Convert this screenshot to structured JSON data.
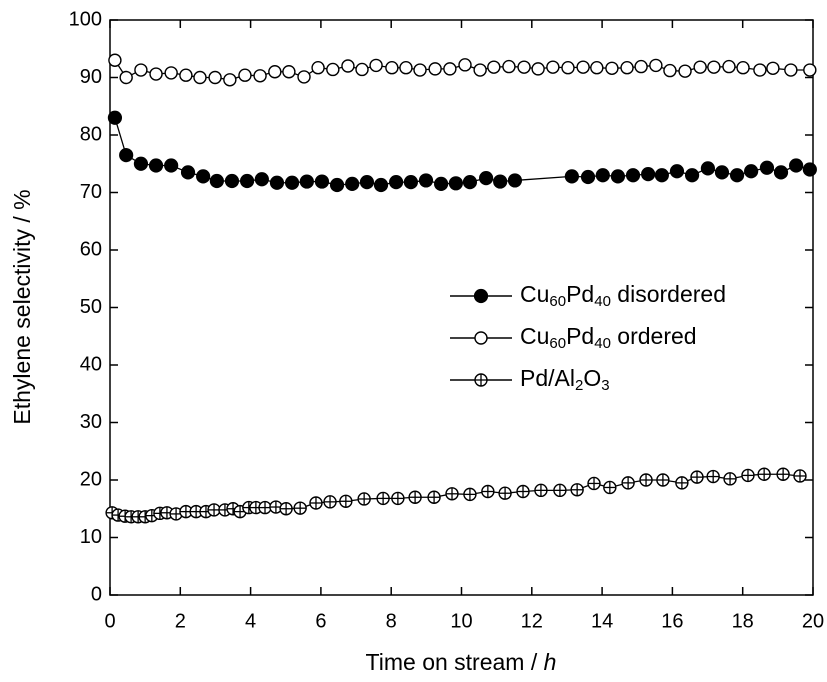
{
  "chart_data": {
    "type": "scatter",
    "x_label": "Time on stream / h",
    "y_label": "Ethylene selectivity / %",
    "xlim": [
      0,
      20
    ],
    "xticks": [
      0,
      2,
      4,
      6,
      8,
      10,
      12,
      14,
      16,
      18,
      20
    ],
    "ylim": [
      0,
      100
    ],
    "yticks": [
      0,
      10,
      20,
      30,
      40,
      50,
      60,
      70,
      80,
      90,
      100
    ],
    "legend": "right",
    "series": [
      {
        "name": "Cu60Pd40 disordered",
        "color": "#000000",
        "marker": "filled",
        "x": [
          0.14,
          0.46,
          0.88,
          1.31,
          1.74,
          2.22,
          2.65,
          3.04,
          3.47,
          3.9,
          4.32,
          4.75,
          5.18,
          5.6,
          6.03,
          6.46,
          6.89,
          7.31,
          7.71,
          8.14,
          8.56,
          8.99,
          9.42,
          9.84,
          10.24,
          10.7,
          11.1,
          11.52,
          13.14,
          13.6,
          14.02,
          14.45,
          14.88,
          15.31,
          15.7,
          16.13,
          16.56,
          17.01,
          17.41,
          17.84,
          18.24,
          18.69,
          19.09,
          19.52,
          19.91
        ],
        "values": [
          83,
          76.5,
          75,
          74.7,
          74.7,
          73.5,
          72.8,
          72,
          72,
          72,
          72.3,
          71.7,
          71.7,
          71.9,
          71.9,
          71.3,
          71.5,
          71.8,
          71.3,
          71.8,
          71.8,
          72.1,
          71.5,
          71.6,
          71.8,
          72.5,
          71.9,
          72.1,
          72.8,
          72.7,
          73,
          72.8,
          73,
          73.2,
          73,
          73.7,
          73,
          74.2,
          73.5,
          73,
          73.7,
          74.3,
          73.5,
          74.7,
          74
        ]
      },
      {
        "name": "Cu60Pd40 ordered",
        "color": "#000000",
        "marker": "open",
        "x": [
          0.14,
          0.46,
          0.88,
          1.31,
          1.74,
          2.16,
          2.56,
          2.99,
          3.41,
          3.84,
          4.27,
          4.69,
          5.09,
          5.52,
          5.92,
          6.34,
          6.77,
          7.17,
          7.57,
          8.02,
          8.42,
          8.82,
          9.25,
          9.67,
          10.1,
          10.53,
          10.92,
          11.35,
          11.78,
          12.18,
          12.6,
          13.03,
          13.46,
          13.85,
          14.28,
          14.71,
          15.11,
          15.53,
          15.93,
          16.36,
          16.79,
          17.18,
          17.61,
          18.01,
          18.49,
          18.86,
          19.37,
          19.91
        ],
        "values": [
          93,
          90,
          91.3,
          90.6,
          90.8,
          90.4,
          90,
          90,
          89.6,
          90.4,
          90.3,
          91,
          91,
          90.1,
          91.7,
          91.4,
          92,
          91.4,
          92.1,
          91.7,
          91.7,
          91.3,
          91.5,
          91.5,
          92.2,
          91.3,
          91.8,
          91.9,
          91.8,
          91.5,
          91.8,
          91.7,
          91.8,
          91.7,
          91.6,
          91.7,
          91.9,
          92.1,
          91.2,
          91.1,
          91.8,
          91.8,
          91.9,
          91.7,
          91.3,
          91.6,
          91.3,
          91.3
        ]
      },
      {
        "name": "Pd/Al2O3",
        "color": "#000000",
        "marker": "crossed",
        "x": [
          0.06,
          0.23,
          0.43,
          0.6,
          0.8,
          1.0,
          1.19,
          1.42,
          1.62,
          1.88,
          2.16,
          2.45,
          2.73,
          2.96,
          3.27,
          3.5,
          3.7,
          3.95,
          4.15,
          4.41,
          4.72,
          5.01,
          5.41,
          5.86,
          6.26,
          6.71,
          7.23,
          7.77,
          8.19,
          8.68,
          9.22,
          9.73,
          10.24,
          10.75,
          11.24,
          11.75,
          12.26,
          12.8,
          13.29,
          13.77,
          14.22,
          14.74,
          15.25,
          15.73,
          16.27,
          16.7,
          17.16,
          17.64,
          18.15,
          18.61,
          19.15,
          19.63
        ],
        "values": [
          14.3,
          13.9,
          13.7,
          13.6,
          13.6,
          13.6,
          13.8,
          14.2,
          14.3,
          14.1,
          14.5,
          14.5,
          14.5,
          14.8,
          14.8,
          15,
          14.5,
          15.2,
          15.2,
          15.2,
          15.3,
          15,
          15.1,
          16,
          16.2,
          16.3,
          16.7,
          16.8,
          16.8,
          17,
          17,
          17.6,
          17.5,
          18,
          17.7,
          18,
          18.2,
          18.2,
          18.3,
          19.4,
          18.7,
          19.5,
          20,
          20,
          19.5,
          20.5,
          20.6,
          20.2,
          20.8,
          21,
          21,
          20.7
        ]
      }
    ]
  }
}
